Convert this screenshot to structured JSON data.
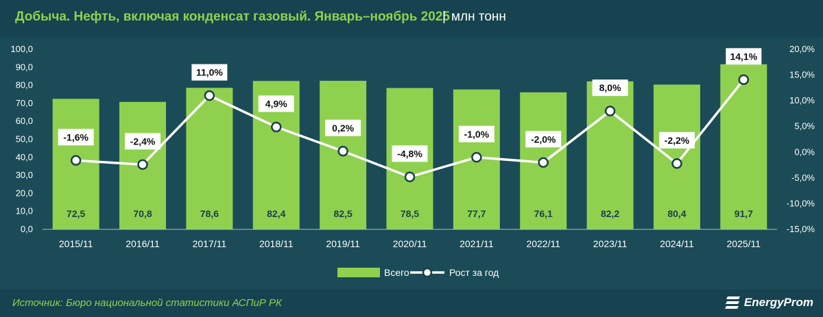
{
  "header": {
    "title": "Добыча. Нефть, включая конденсат газовый. Январь–ноябрь 2025",
    "units": "млн тонн"
  },
  "footer": {
    "source": "Источник: Бюро национальной статистики АСПиР РК",
    "brand": "EnergyProm"
  },
  "colors": {
    "background": "#1f4e5b",
    "bar": "#8fd14f",
    "line": "#ffffff",
    "text": "#ffffff",
    "title": "#8fd14f"
  },
  "chart_data": {
    "type": "bar",
    "categories": [
      "2015/11",
      "2016/11",
      "2017/11",
      "2018/11",
      "2019/11",
      "2020/11",
      "2021/11",
      "2022/11",
      "2023/11",
      "2024/11",
      "2025/11"
    ],
    "series": [
      {
        "name": "Всего",
        "type": "bar",
        "axis": "left",
        "values": [
          72.5,
          70.8,
          78.6,
          82.4,
          82.5,
          78.5,
          77.7,
          76.1,
          82.2,
          80.4,
          91.7
        ],
        "labels": [
          "72,5",
          "70,8",
          "78,6",
          "82,4",
          "82,5",
          "78,5",
          "77,7",
          "76,1",
          "82,2",
          "80,4",
          "91,7"
        ]
      },
      {
        "name": "Рост за год",
        "type": "line",
        "axis": "right",
        "values": [
          -1.6,
          -2.4,
          11.0,
          4.9,
          0.2,
          -4.8,
          -1.0,
          -2.0,
          8.0,
          -2.2,
          14.1
        ],
        "labels": [
          "-1,6%",
          "-2,4%",
          "11,0%",
          "4,9%",
          "0,2%",
          "-4,8%",
          "-1,0%",
          "-2,0%",
          "8,0%",
          "-2,2%",
          "14,1%"
        ]
      }
    ],
    "y_left": {
      "min": 0,
      "max": 100,
      "ticks": [
        0,
        10,
        20,
        30,
        40,
        50,
        60,
        70,
        80,
        90,
        100
      ],
      "tick_labels": [
        "0,0",
        "10,0",
        "20,0",
        "30,0",
        "40,0",
        "50,0",
        "60,0",
        "70,0",
        "80,0",
        "90,0",
        "100,0"
      ]
    },
    "y_right": {
      "min": -15,
      "max": 20,
      "ticks": [
        -15,
        -10,
        -5,
        0,
        5,
        10,
        15,
        20
      ],
      "tick_labels": [
        "-15,0%",
        "-10,0%",
        "-5,0%",
        "0,0%",
        "5,0%",
        "10,0%",
        "15,0%",
        "20,0%"
      ]
    },
    "grid": false,
    "legend": "bottom"
  }
}
